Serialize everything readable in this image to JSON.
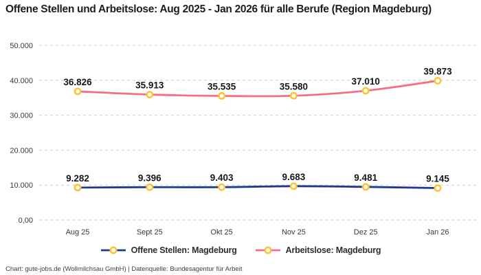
{
  "title": "Offene Stellen und Arbeitslose: Aug 2025 - Jan 2026 für alle Berufe (Region Magdeburg)",
  "footer": "Chart: gute-jobs.de (Wollmilchsau GmbH) | Datenquelle: Bundesagentur für Arbeit",
  "colors": {
    "offene_stellen_line": "#1E3A8F",
    "arbeitslose_line": "#F76D86",
    "marker_ring": "#FFC233",
    "marker_fill": "#FFFFFF",
    "gridline": "#CDCDCD",
    "axis_text": "#383838",
    "data_label_text": "#161616",
    "title_text": "#1D1D1F",
    "background": "#FFFFFF"
  },
  "chart_data": {
    "type": "line",
    "title": "Offene Stellen und Arbeitslose: Aug 2025 - Jan 2026 für alle Berufe (Region Magdeburg)",
    "categories": [
      "Aug 25",
      "Sept 25",
      "Okt 25",
      "Nov 25",
      "Dez 25",
      "Jan 26"
    ],
    "series": [
      {
        "name": "Offene Stellen: Magdeburg",
        "color": "#1E3A8F",
        "values": [
          9282,
          9396,
          9403,
          9683,
          9481,
          9145
        ],
        "labels": [
          "9.282",
          "9.396",
          "9.403",
          "9.683",
          "9.481",
          "9.145"
        ]
      },
      {
        "name": "Arbeitslose: Magdeburg",
        "color": "#F76D86",
        "values": [
          36826,
          35913,
          35535,
          35580,
          37010,
          39873
        ],
        "labels": [
          "36.826",
          "35.913",
          "35.535",
          "35.580",
          "37.010",
          "39.873"
        ]
      }
    ],
    "xlabel": "",
    "ylabel": "",
    "ylim": [
      0,
      50000
    ],
    "yticks": [
      {
        "value": 0,
        "label": "0,00"
      },
      {
        "value": 10000,
        "label": "10.000"
      },
      {
        "value": 20000,
        "label": "20.000"
      },
      {
        "value": 30000,
        "label": "30.000"
      },
      {
        "value": 40000,
        "label": "40.000"
      },
      {
        "value": 50000,
        "label": "50.000"
      }
    ],
    "grid": "horizontal-dashed",
    "legend_position": "bottom",
    "marker": "circle-yellow-ring-white-fill"
  }
}
